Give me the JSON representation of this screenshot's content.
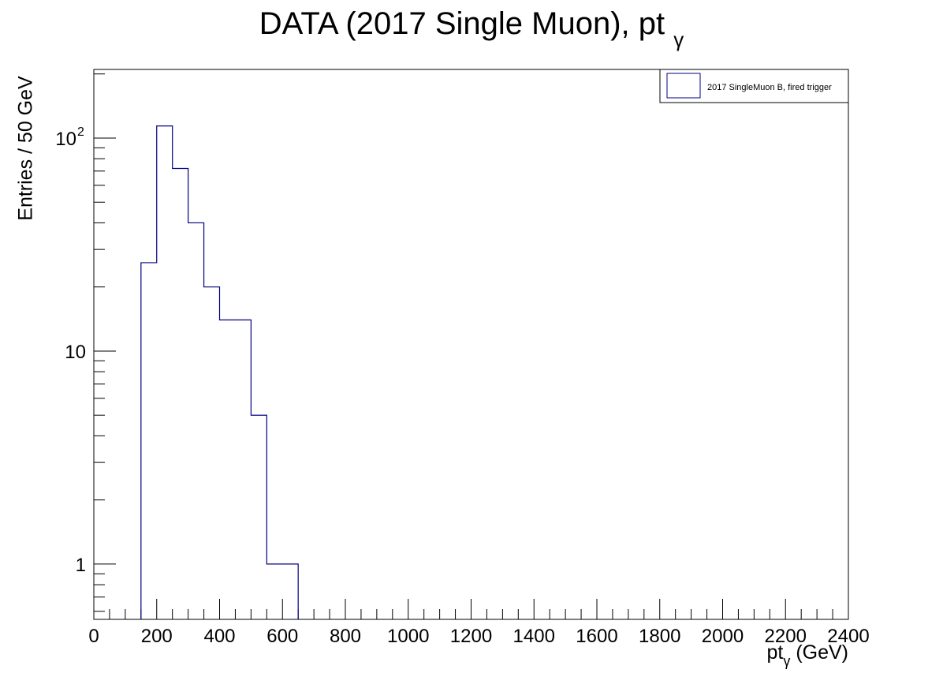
{
  "chart_data": {
    "type": "histogram",
    "title": "DATA (2017 Single Muon), pt",
    "title_subscript": "γ",
    "xlabel": "pt",
    "xlabel_subscript": "γ",
    "xlabel_unit": "(GeV)",
    "ylabel": "Entries / 50 GeV",
    "x_range": [
      0,
      2400
    ],
    "y_range": [
      0.55,
      210
    ],
    "y_scale": "log",
    "bin_width": 50,
    "x_ticks": [
      "0",
      "200",
      "400",
      "600",
      "800",
      "1000",
      "1200",
      "1400",
      "1600",
      "1800",
      "2000",
      "2200",
      "2400"
    ],
    "y_ticks": [
      {
        "value": 1,
        "base": "1",
        "exp": ""
      },
      {
        "value": 10,
        "base": "10",
        "exp": ""
      },
      {
        "value": 100,
        "base": "10",
        "exp": "2"
      }
    ],
    "bins": [
      {
        "lo": 150,
        "hi": 200,
        "count": 26
      },
      {
        "lo": 200,
        "hi": 250,
        "count": 114
      },
      {
        "lo": 250,
        "hi": 300,
        "count": 72
      },
      {
        "lo": 300,
        "hi": 350,
        "count": 40
      },
      {
        "lo": 350,
        "hi": 400,
        "count": 20
      },
      {
        "lo": 400,
        "hi": 450,
        "count": 14
      },
      {
        "lo": 450,
        "hi": 500,
        "count": 14
      },
      {
        "lo": 500,
        "hi": 550,
        "count": 5
      },
      {
        "lo": 550,
        "hi": 600,
        "count": 1
      },
      {
        "lo": 600,
        "hi": 650,
        "count": 1
      }
    ],
    "legend": [
      {
        "name": "2017 SingleMuon B, fired trigger",
        "color": "#000080"
      }
    ],
    "legend_position": "top-right",
    "line_color": "#000080",
    "grid": false
  }
}
